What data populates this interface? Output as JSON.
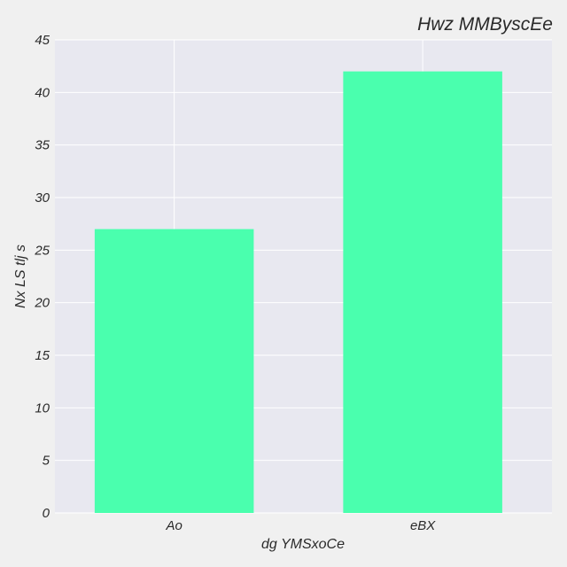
{
  "chart_data": {
    "type": "bar",
    "title": "Hwz MMByscEe",
    "xlabel": "dg YMSxoCe",
    "ylabel": "Nx  LS tlj s",
    "categories": [
      "Ao",
      "eBX"
    ],
    "values": [
      27,
      42
    ],
    "ylim": [
      0,
      45
    ],
    "yticks": [
      0,
      5,
      10,
      15,
      20,
      25,
      30,
      35,
      40,
      45
    ],
    "grid": true,
    "bar_color": "#4affae",
    "plot_background": "#e8e8f0",
    "figure_background": "#f0f0f0"
  }
}
